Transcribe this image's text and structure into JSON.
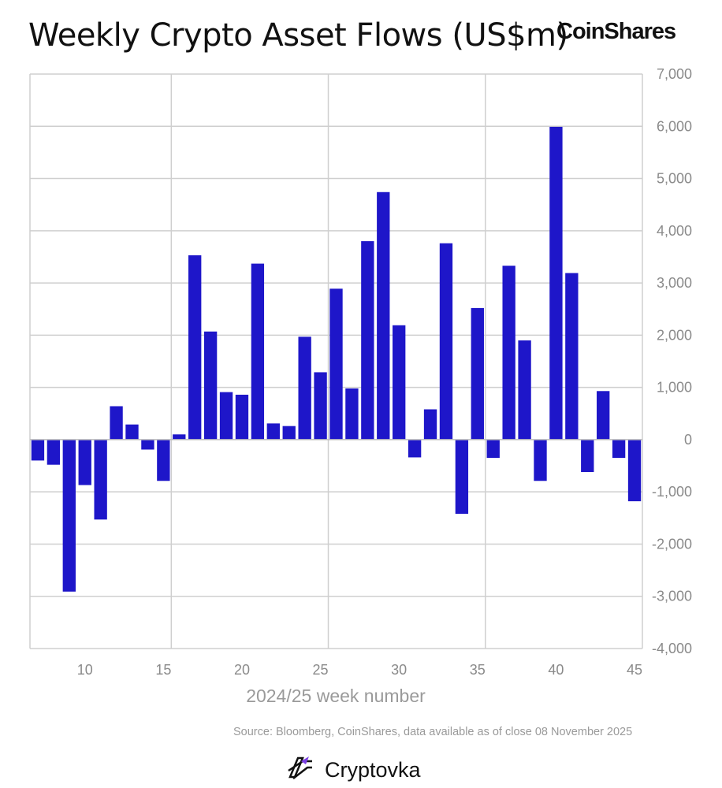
{
  "header": {
    "title": "Weekly Crypto Asset Flows (US$m)",
    "brand": "CoinShares"
  },
  "chart_data": {
    "type": "bar",
    "title": "Weekly Crypto Asset Flows (US$m)",
    "xlabel": "2024/25 week number",
    "ylabel": "",
    "ylim": [
      -4000,
      7000
    ],
    "yticks": [
      7000,
      6000,
      5000,
      4000,
      3000,
      2000,
      1000,
      0,
      -1000,
      -2000,
      -3000,
      -4000
    ],
    "ytick_labels": [
      "7,000",
      "6,000",
      "5,000",
      "4,000",
      "3,000",
      "2,000",
      "1,000",
      "0",
      "-1,000",
      "-2,000",
      "-3,000",
      "-4,000"
    ],
    "xticks": [
      10,
      15,
      20,
      25,
      30,
      35,
      40,
      45
    ],
    "xtick_labels": [
      "10",
      "15",
      "20",
      "25",
      "30",
      "35",
      "40",
      "45"
    ],
    "x_range": [
      6.5,
      45.5
    ],
    "vertical_gridlines_at": [
      6.5,
      15.5,
      25.5,
      35.5,
      45.5
    ],
    "horizontal_grid": true,
    "bar_color": "#1e16c9",
    "categories": [
      7,
      8,
      9,
      10,
      11,
      12,
      13,
      14,
      15,
      16,
      17,
      18,
      19,
      20,
      21,
      22,
      23,
      24,
      25,
      26,
      27,
      28,
      29,
      30,
      31,
      32,
      33,
      34,
      35,
      36,
      37,
      38,
      39,
      40,
      41,
      42,
      43,
      44,
      45
    ],
    "values": [
      -400,
      -480,
      -2910,
      -870,
      -1530,
      640,
      290,
      -190,
      -790,
      100,
      3530,
      2070,
      910,
      860,
      3370,
      310,
      260,
      1970,
      1290,
      2890,
      980,
      3800,
      4740,
      2190,
      -340,
      580,
      3760,
      -1420,
      2520,
      -350,
      3330,
      1900,
      -790,
      5990,
      3190,
      -620,
      930,
      -350,
      -1180
    ]
  },
  "source": "Source: Bloomberg, CoinShares, data available as of close 08 November 2025",
  "footer": {
    "logo_icon": "cryptovka-logo-icon",
    "text": "Cryptovka"
  }
}
